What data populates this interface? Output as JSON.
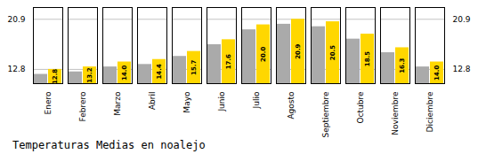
{
  "chart_data": {
    "type": "bar",
    "title": "Temperaturas Medias en noalejo",
    "categories": [
      "Enero",
      "Febrero",
      "Marzo",
      "Abril",
      "Mayo",
      "Junio",
      "Julio",
      "Agosto",
      "Septiembre",
      "Octubre",
      "Noviembre",
      "Diciembre"
    ],
    "series": [
      {
        "color": "#AAAAAA",
        "values": [
          12.0,
          12.4,
          13.2,
          13.6,
          14.9,
          16.8,
          19.2,
          20.1,
          19.7,
          17.7,
          15.5,
          13.2
        ]
      },
      {
        "color": "#FFD700",
        "values": [
          12.8,
          13.2,
          14.0,
          14.4,
          15.7,
          17.6,
          20.0,
          20.9,
          20.5,
          18.5,
          16.3,
          14.0
        ],
        "value_labels": [
          "12.8",
          "13.2",
          "14.0",
          "14.4",
          "15.7",
          "17.6",
          "20.0",
          "20.9",
          "20.5",
          "18.5",
          "16.3",
          "14.0"
        ],
        "data_labels": true
      }
    ],
    "ylim": [
      10.5,
      22.8
    ],
    "yticks": [
      12.8,
      20.9
    ],
    "grid": true
  }
}
